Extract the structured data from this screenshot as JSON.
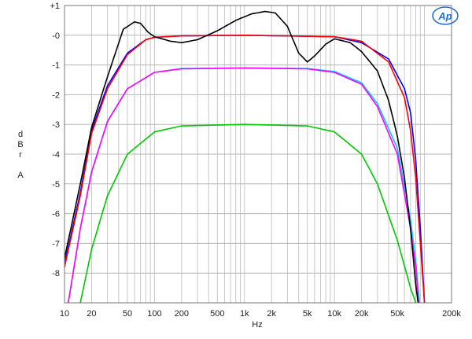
{
  "chart_data": {
    "type": "line",
    "xlabel": "Hz",
    "ylabel": [
      "d",
      "B",
      "r",
      "",
      "A"
    ],
    "x_scale": "log",
    "xlim": [
      10,
      200000
    ],
    "ylim": [
      -9,
      1
    ],
    "grid": true,
    "logo": "Ap",
    "x_ticks": [
      {
        "value": 10,
        "label": "10"
      },
      {
        "value": 20,
        "label": "20"
      },
      {
        "value": 50,
        "label": "50"
      },
      {
        "value": 100,
        "label": "100"
      },
      {
        "value": 200,
        "label": "200"
      },
      {
        "value": 500,
        "label": "500"
      },
      {
        "value": 1000,
        "label": "1k"
      },
      {
        "value": 2000,
        "label": "2k"
      },
      {
        "value": 5000,
        "label": "5k"
      },
      {
        "value": 10000,
        "label": "10k"
      },
      {
        "value": 20000,
        "label": "20k"
      },
      {
        "value": 50000,
        "label": "50k"
      },
      {
        "value": 200000,
        "label": "200k"
      }
    ],
    "y_ticks": [
      {
        "value": 1,
        "label": "+1"
      },
      {
        "value": 0,
        "label": "-0"
      },
      {
        "value": -1,
        "label": "-1"
      },
      {
        "value": -2,
        "label": "-2"
      },
      {
        "value": -3,
        "label": "-3"
      },
      {
        "value": -4,
        "label": "-4"
      },
      {
        "value": -5,
        "label": "-5"
      },
      {
        "value": -6,
        "label": "-6"
      },
      {
        "value": -7,
        "label": "-7"
      },
      {
        "value": -8,
        "label": "-8"
      }
    ],
    "series": [
      {
        "color": "#00c800",
        "points": [
          [
            15,
            -9
          ],
          [
            20,
            -7.2
          ],
          [
            30,
            -5.4
          ],
          [
            50,
            -4.0
          ],
          [
            100,
            -3.25
          ],
          [
            200,
            -3.05
          ],
          [
            1000,
            -3.0
          ],
          [
            5000,
            -3.05
          ],
          [
            10000,
            -3.25
          ],
          [
            20000,
            -4.0
          ],
          [
            30000,
            -5.0
          ],
          [
            50000,
            -6.9
          ],
          [
            70000,
            -8.5
          ],
          [
            80000,
            -9
          ]
        ]
      },
      {
        "color": "#00c8ff",
        "points": [
          [
            11,
            -9
          ],
          [
            15,
            -6.5
          ],
          [
            20,
            -4.6
          ],
          [
            30,
            -2.9
          ],
          [
            50,
            -1.8
          ],
          [
            100,
            -1.25
          ],
          [
            200,
            -1.12
          ],
          [
            1000,
            -1.1
          ],
          [
            5000,
            -1.12
          ],
          [
            10000,
            -1.22
          ],
          [
            20000,
            -1.6
          ],
          [
            30000,
            -2.3
          ],
          [
            50000,
            -3.8
          ],
          [
            70000,
            -6.2
          ],
          [
            80000,
            -7.6
          ],
          [
            88000,
            -9
          ]
        ]
      },
      {
        "color": "#ff00ff",
        "points": [
          [
            11,
            -9
          ],
          [
            15,
            -6.5
          ],
          [
            20,
            -4.6
          ],
          [
            30,
            -2.9
          ],
          [
            50,
            -1.8
          ],
          [
            100,
            -1.25
          ],
          [
            200,
            -1.13
          ],
          [
            1000,
            -1.1
          ],
          [
            5000,
            -1.13
          ],
          [
            10000,
            -1.25
          ],
          [
            20000,
            -1.65
          ],
          [
            30000,
            -2.4
          ],
          [
            50000,
            -4.0
          ],
          [
            70000,
            -6.5
          ],
          [
            80000,
            -7.8
          ],
          [
            86000,
            -9
          ]
        ]
      },
      {
        "color": "#0000ff",
        "points": [
          [
            10,
            -7.7
          ],
          [
            15,
            -5.3
          ],
          [
            20,
            -3.2
          ],
          [
            30,
            -1.7
          ],
          [
            50,
            -0.6
          ],
          [
            80,
            -0.15
          ],
          [
            100,
            -0.07
          ],
          [
            200,
            -0.02
          ],
          [
            1000,
            0
          ],
          [
            10000,
            -0.05
          ],
          [
            20000,
            -0.25
          ],
          [
            40000,
            -0.8
          ],
          [
            60000,
            -1.8
          ],
          [
            70000,
            -2.6
          ],
          [
            80000,
            -4.2
          ],
          [
            90000,
            -6.5
          ],
          [
            100000,
            -9
          ]
        ]
      },
      {
        "color": "#ff0000",
        "points": [
          [
            10,
            -7.8
          ],
          [
            15,
            -5.4
          ],
          [
            20,
            -3.3
          ],
          [
            30,
            -1.8
          ],
          [
            50,
            -0.65
          ],
          [
            80,
            -0.15
          ],
          [
            100,
            -0.07
          ],
          [
            200,
            -0.02
          ],
          [
            1000,
            0
          ],
          [
            10000,
            -0.05
          ],
          [
            20000,
            -0.2
          ],
          [
            40000,
            -0.9
          ],
          [
            60000,
            -2.1
          ],
          [
            70000,
            -3.2
          ],
          [
            80000,
            -4.8
          ],
          [
            90000,
            -7.0
          ],
          [
            100000,
            -9
          ]
        ]
      },
      {
        "color": "#000000",
        "points": [
          [
            10,
            -7.5
          ],
          [
            15,
            -5.0
          ],
          [
            20,
            -3.1
          ],
          [
            30,
            -1.4
          ],
          [
            45,
            0.2
          ],
          [
            60,
            0.45
          ],
          [
            70,
            0.4
          ],
          [
            85,
            0.1
          ],
          [
            100,
            -0.05
          ],
          [
            150,
            -0.2
          ],
          [
            200,
            -0.25
          ],
          [
            300,
            -0.15
          ],
          [
            500,
            0.15
          ],
          [
            800,
            0.5
          ],
          [
            1200,
            0.72
          ],
          [
            1700,
            0.8
          ],
          [
            2200,
            0.75
          ],
          [
            3000,
            0.3
          ],
          [
            4000,
            -0.6
          ],
          [
            5000,
            -0.9
          ],
          [
            6000,
            -0.7
          ],
          [
            8000,
            -0.3
          ],
          [
            10000,
            -0.12
          ],
          [
            15000,
            -0.25
          ],
          [
            20000,
            -0.55
          ],
          [
            30000,
            -1.2
          ],
          [
            40000,
            -2.2
          ],
          [
            50000,
            -3.4
          ],
          [
            60000,
            -4.8
          ],
          [
            70000,
            -6.5
          ],
          [
            80000,
            -8.4
          ],
          [
            85000,
            -9
          ]
        ]
      }
    ]
  }
}
